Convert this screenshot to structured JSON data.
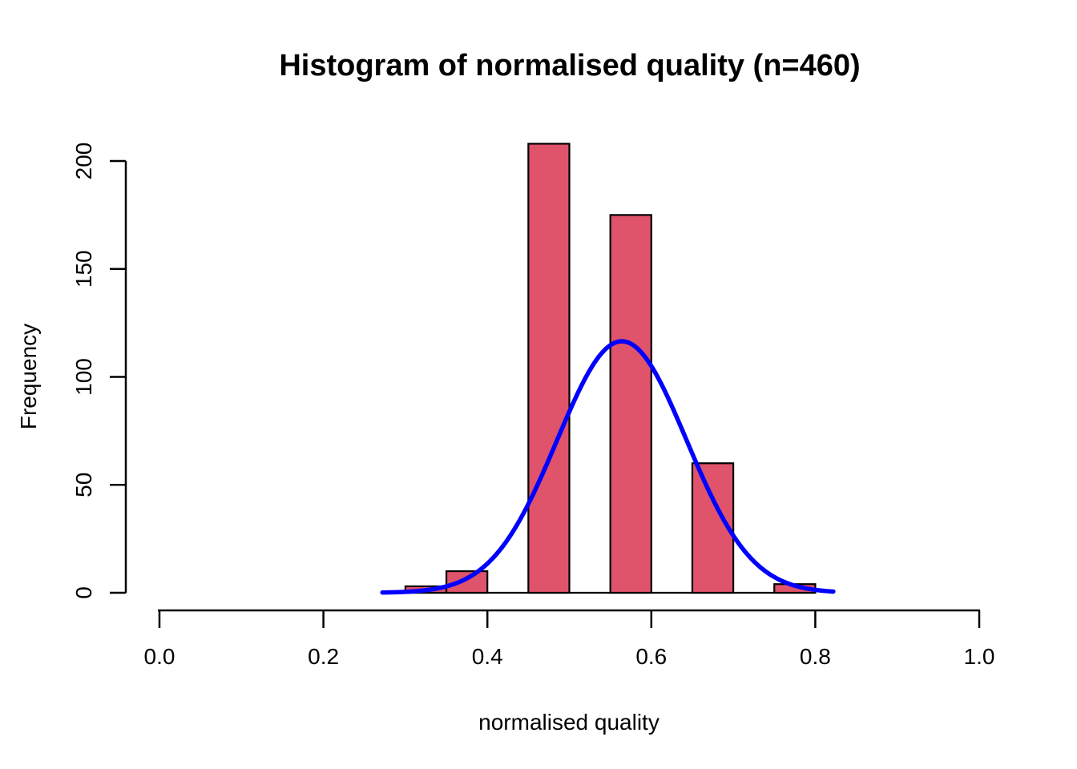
{
  "chart_data": {
    "type": "bar",
    "subtype": "histogram-with-density-curve",
    "title": "Histogram of normalised quality (n=460)",
    "xlabel": "normalised quality",
    "ylabel": "Frequency",
    "n": 460,
    "xlim": [
      0.0,
      1.0
    ],
    "ylim": [
      0,
      200
    ],
    "grid": "off",
    "legend": "none",
    "x_ticks": [
      {
        "value": 0.0,
        "label": "0.0"
      },
      {
        "value": 0.2,
        "label": "0.2"
      },
      {
        "value": 0.4,
        "label": "0.4"
      },
      {
        "value": 0.6,
        "label": "0.6"
      },
      {
        "value": 0.8,
        "label": "0.8"
      },
      {
        "value": 1.0,
        "label": "1.0"
      }
    ],
    "y_ticks": [
      {
        "value": 0,
        "label": "0"
      },
      {
        "value": 50,
        "label": "50"
      },
      {
        "value": 100,
        "label": "100"
      },
      {
        "value": 150,
        "label": "150"
      },
      {
        "value": 200,
        "label": "200"
      }
    ],
    "bin_width": 0.05,
    "bins": [
      {
        "from": 0.3,
        "to": 0.35,
        "count": 3
      },
      {
        "from": 0.35,
        "to": 0.4,
        "count": 10
      },
      {
        "from": 0.4,
        "to": 0.45,
        "count": 0
      },
      {
        "from": 0.45,
        "to": 0.5,
        "count": 208
      },
      {
        "from": 0.5,
        "to": 0.55,
        "count": 0
      },
      {
        "from": 0.55,
        "to": 0.6,
        "count": 175
      },
      {
        "from": 0.6,
        "to": 0.65,
        "count": 0
      },
      {
        "from": 0.65,
        "to": 0.7,
        "count": 60
      },
      {
        "from": 0.7,
        "to": 0.75,
        "count": 0
      },
      {
        "from": 0.75,
        "to": 0.8,
        "count": 4
      }
    ],
    "curve": {
      "kind": "fitted-normal-density",
      "mean": 0.564,
      "sd": 0.079,
      "peak_frequency": 116.5,
      "x_from": 0.272,
      "x_to": 0.822
    },
    "colors": {
      "bar_fill": "#DF536B",
      "bar_border": "#000000",
      "curve": "#0000FF",
      "axis": "#000000",
      "text": "#000000",
      "background": "#FFFFFF"
    }
  }
}
